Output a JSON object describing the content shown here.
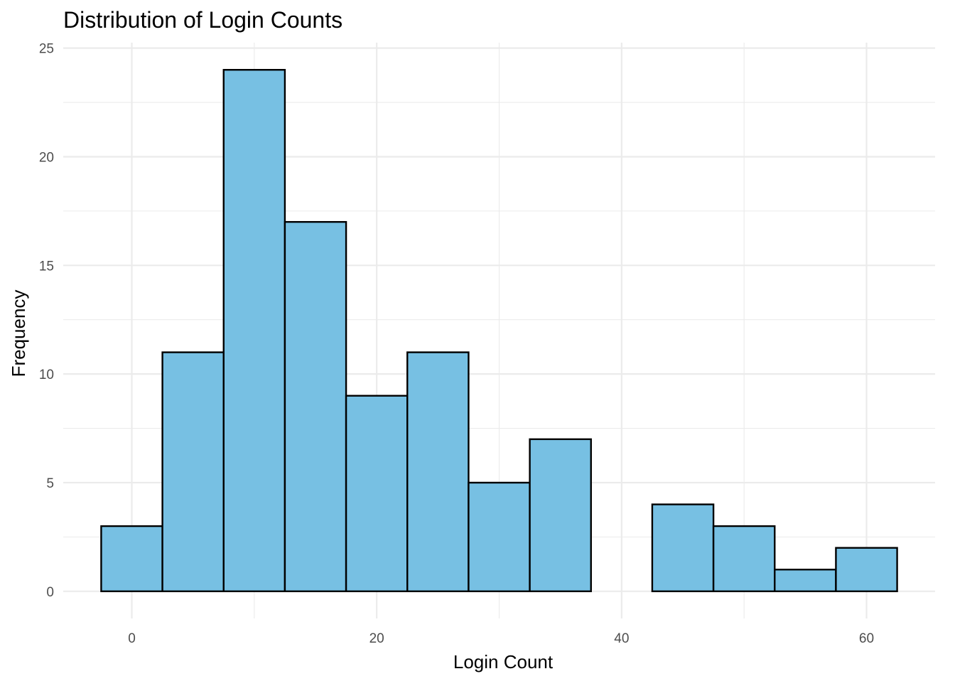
{
  "chart_data": {
    "type": "bar",
    "subtype": "histogram",
    "title": "Distribution of Login Counts",
    "xlabel": "Login Count",
    "ylabel": "Frequency",
    "bin_width": 5,
    "bin_centers": [
      0,
      5,
      10,
      15,
      20,
      25,
      30,
      35,
      40,
      45,
      50,
      55,
      60
    ],
    "values": [
      3,
      11,
      24,
      17,
      9,
      11,
      5,
      7,
      0,
      4,
      3,
      1,
      2
    ],
    "xlim": [
      -5.6,
      65.6
    ],
    "ylim": [
      -1.25,
      25.25
    ],
    "x_ticks": [
      0,
      20,
      40,
      60
    ],
    "y_ticks": [
      0,
      5,
      10,
      15,
      20,
      25
    ],
    "x_tick_labels": [
      "0",
      "20",
      "40",
      "60"
    ],
    "y_tick_labels": [
      "0",
      "5",
      "10",
      "15",
      "20",
      "25"
    ],
    "grid": true,
    "legend": "none",
    "colors": {
      "bar_fill": "#77c0e3",
      "bar_stroke": "#000000",
      "grid": "#ebebeb",
      "tick_text": "#4d4d4d",
      "background": "#ffffff"
    }
  }
}
